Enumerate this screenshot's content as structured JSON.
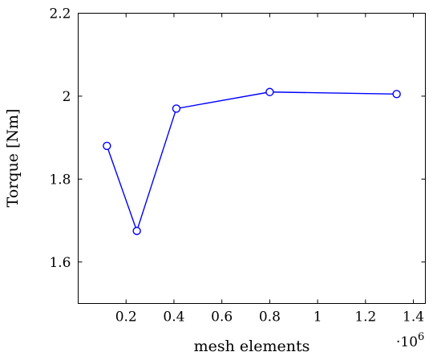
{
  "chart_data": {
    "type": "line",
    "xlabel": "mesh elements",
    "ylabel": "Torque [Nm]",
    "x_exponent_label": "·10",
    "x_exponent_power": "6",
    "xlim": [
      0,
      1.45
    ],
    "ylim": [
      1.5,
      2.2
    ],
    "x_ticks": [
      0.2,
      0.4,
      0.6,
      0.8,
      1,
      1.2,
      1.4
    ],
    "x_tick_labels": [
      "0.2",
      "0.4",
      "0.6",
      "0.8",
      "1",
      "1.2",
      "1.4"
    ],
    "y_ticks": [
      1.6,
      1.8,
      2.0,
      2.2
    ],
    "y_tick_labels": [
      "1.6",
      "1.8",
      "2",
      "2.2"
    ],
    "grid": false,
    "legend": "none",
    "series": [
      {
        "color": "#0000ff",
        "marker": "open-circle",
        "x": [
          0.12,
          0.245,
          0.41,
          0.8,
          1.33
        ],
        "y": [
          1.88,
          1.675,
          1.97,
          2.01,
          2.005
        ]
      }
    ]
  }
}
